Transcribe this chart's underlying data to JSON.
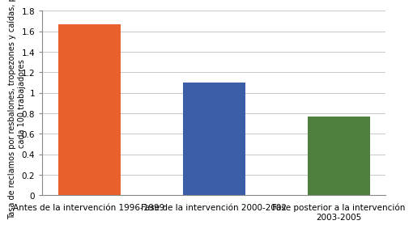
{
  "categories": [
    "Antes de la intervención 1996-1999",
    "Fase de la intervención 2000-2002",
    "Fase posterior a la intervención\n2003-2005"
  ],
  "values": [
    1.67,
    1.1,
    0.77
  ],
  "bar_colors": [
    "#e8602c",
    "#3c5da8",
    "#4e7f3c"
  ],
  "ylabel_line1": "Tasa de reclamos por resbalones, tropezones y caídas, por",
  "ylabel_line2": "cada 100 trabajadores",
  "ylim": [
    0,
    1.8
  ],
  "yticks": [
    0,
    0.2,
    0.4,
    0.6,
    0.8,
    1.0,
    1.2,
    1.4,
    1.6,
    1.8
  ],
  "ytick_labels": [
    "0",
    "0.2",
    "0.4",
    "0.6",
    "0.8",
    "1",
    "1.2",
    "1.4",
    "1.6",
    "1.8"
  ],
  "background_color": "#ffffff",
  "grid_color": "#c0c0c0",
  "ylabel_fontsize": 7.0,
  "tick_fontsize": 7.5,
  "xtick_fontsize": 7.5,
  "bar_width": 0.5
}
